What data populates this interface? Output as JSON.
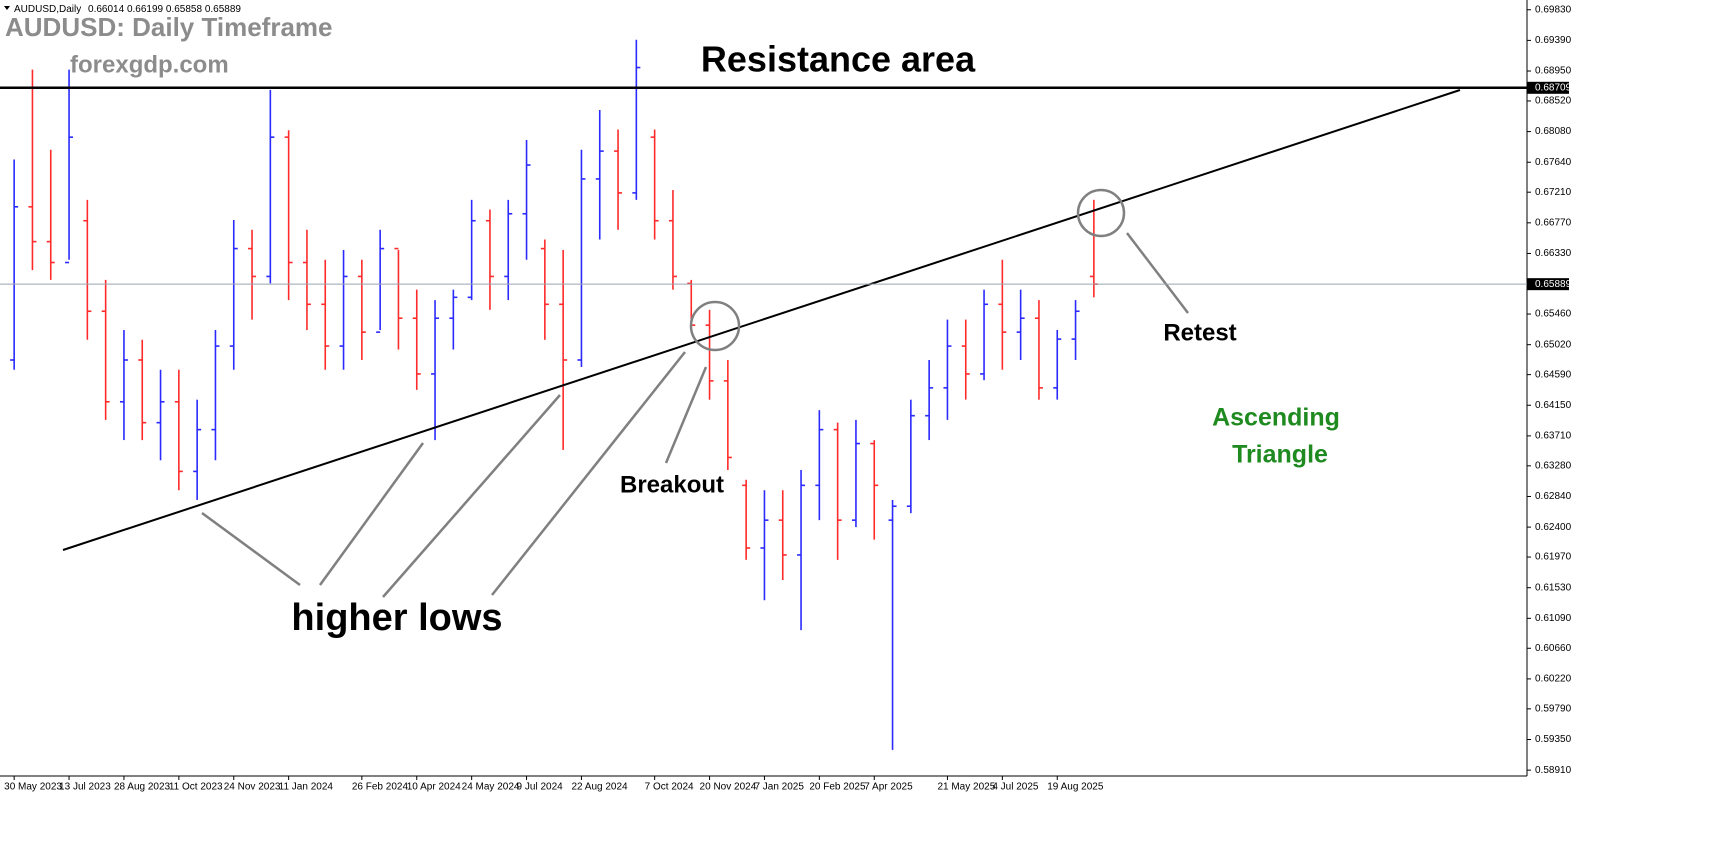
{
  "header": {
    "symbol": "AUDUSD,Daily",
    "ohlc": [
      0.66014,
      0.66199,
      0.65858,
      0.65889
    ]
  },
  "chart_data": {
    "type": "ohlc",
    "title": "AUDUSD: Daily Timeframe",
    "subtitle": "forexgdp.com",
    "categories": [
      "30 May 2023",
      null,
      null,
      "13 Jul 2023",
      null,
      null,
      "28 Aug 2023",
      null,
      null,
      "11 Oct 2023",
      null,
      null,
      "24 Nov 2023",
      null,
      null,
      "11 Jan 2024",
      null,
      null,
      null,
      "26 Feb 2024",
      null,
      null,
      "10 Apr 2024",
      null,
      null,
      "24 May 2024",
      null,
      null,
      "9 Jul 2024",
      null,
      null,
      "22 Aug 2024",
      null,
      null,
      null,
      "7 Oct 2024",
      null,
      null,
      "20 Nov 2024",
      null,
      null,
      "7 Jan 2025",
      null,
      null,
      "20 Feb 2025",
      null,
      null,
      "7 Apr 2025",
      null,
      null,
      null,
      "21 May 2025",
      null,
      null,
      "4 Jul 2025",
      null,
      null,
      "19 Aug 2025",
      null,
      null
    ],
    "open": [
      0.648,
      0.67,
      0.665,
      0.662,
      0.668,
      0.655,
      0.642,
      0.648,
      0.639,
      0.642,
      0.632,
      0.638,
      0.65,
      0.664,
      0.66,
      0.68,
      0.662,
      0.656,
      0.65,
      0.66,
      0.652,
      0.664,
      0.654,
      0.646,
      0.654,
      0.657,
      0.668,
      0.66,
      0.669,
      0.664,
      0.656,
      0.648,
      0.674,
      0.678,
      0.672,
      0.68,
      0.668,
      0.659,
      0.653,
      0.645,
      0.63,
      0.621,
      0.625,
      0.62,
      0.63,
      0.638,
      0.625,
      0.636,
      0.625,
      0.627,
      0.64,
      0.644,
      0.65,
      0.646,
      0.656,
      0.652,
      0.654,
      0.644,
      0.651,
      0.66
    ],
    "high": [
      0.6768,
      0.6897,
      0.6782,
      0.6897,
      0.671,
      0.6595,
      0.6523,
      0.6509,
      0.6466,
      0.6466,
      0.6423,
      0.6523,
      0.6681,
      0.6667,
      0.6868,
      0.681,
      0.6667,
      0.6624,
      0.6638,
      0.6624,
      0.6667,
      0.6638,
      0.6581,
      0.6566,
      0.6581,
      0.671,
      0.6696,
      0.671,
      0.6796,
      0.6653,
      0.6638,
      0.6782,
      0.6839,
      0.6811,
      0.694,
      0.6811,
      0.6724,
      0.6595,
      0.6552,
      0.648,
      0.6308,
      0.6293,
      0.6293,
      0.6322,
      0.6408,
      0.639,
      0.6394,
      0.6365,
      0.6279,
      0.6423,
      0.648,
      0.6538,
      0.6538,
      0.6581,
      0.6624,
      0.6581,
      0.6566,
      0.6523,
      0.6566,
      0.671
    ],
    "low": [
      0.6466,
      0.6609,
      0.6595,
      0.6624,
      0.6509,
      0.6394,
      0.6365,
      0.6365,
      0.6336,
      0.6293,
      0.6279,
      0.6336,
      0.6466,
      0.6538,
      0.659,
      0.6566,
      0.6523,
      0.6466,
      0.6466,
      0.648,
      0.6523,
      0.6495,
      0.6437,
      0.6365,
      0.6495,
      0.6566,
      0.6552,
      0.6566,
      0.6624,
      0.6509,
      0.6351,
      0.647,
      0.6653,
      0.6667,
      0.671,
      0.6653,
      0.6581,
      0.6523,
      0.6423,
      0.6322,
      0.6193,
      0.6135,
      0.6164,
      0.6092,
      0.625,
      0.6193,
      0.624,
      0.6222,
      0.592,
      0.626,
      0.6365,
      0.6394,
      0.6423,
      0.6451,
      0.6466,
      0.648,
      0.6423,
      0.6423,
      0.648,
      0.657
    ],
    "close": [
      0.67,
      0.665,
      0.662,
      0.68,
      0.655,
      0.642,
      0.648,
      0.639,
      0.642,
      0.632,
      0.638,
      0.65,
      0.664,
      0.66,
      0.68,
      0.662,
      0.656,
      0.65,
      0.66,
      0.652,
      0.664,
      0.654,
      0.646,
      0.654,
      0.657,
      0.668,
      0.66,
      0.669,
      0.676,
      0.656,
      0.648,
      0.674,
      0.678,
      0.672,
      0.69,
      0.668,
      0.66,
      0.653,
      0.645,
      0.634,
      0.621,
      0.625,
      0.62,
      0.63,
      0.638,
      0.625,
      0.636,
      0.63,
      0.627,
      0.64,
      0.644,
      0.65,
      0.646,
      0.656,
      0.652,
      0.654,
      0.644,
      0.651,
      0.655,
      0.65889
    ],
    "up_color": "#2a2aff",
    "down_color": "#ff2a2a",
    "ylim": [
      0.5884,
      0.6997
    ],
    "yticks": [
      {
        "value": 0.6983,
        "label": "0.69830"
      },
      {
        "value": 0.6939,
        "label": "0.69390"
      },
      {
        "value": 0.6895,
        "label": "0.68950"
      },
      {
        "value": 0.6852,
        "label": "0.68520"
      },
      {
        "value": 0.6808,
        "label": "0.68080"
      },
      {
        "value": 0.6764,
        "label": "0.67640"
      },
      {
        "value": 0.6721,
        "label": "0.67210"
      },
      {
        "value": 0.6677,
        "label": "0.66770"
      },
      {
        "value": 0.6633,
        "label": "0.66330"
      },
      {
        "value": 0.6546,
        "label": "0.65460"
      },
      {
        "value": 0.6502,
        "label": "0.65020"
      },
      {
        "value": 0.6459,
        "label": "0.64590"
      },
      {
        "value": 0.6415,
        "label": "0.64150"
      },
      {
        "value": 0.6371,
        "label": "0.63710"
      },
      {
        "value": 0.6328,
        "label": "0.63280"
      },
      {
        "value": 0.6284,
        "label": "0.62840"
      },
      {
        "value": 0.624,
        "label": "0.62400"
      },
      {
        "value": 0.6197,
        "label": "0.61970"
      },
      {
        "value": 0.6153,
        "label": "0.61530"
      },
      {
        "value": 0.6109,
        "label": "0.61090"
      },
      {
        "value": 0.6066,
        "label": "0.60660"
      },
      {
        "value": 0.6022,
        "label": "0.60220"
      },
      {
        "value": 0.5979,
        "label": "0.59790"
      },
      {
        "value": 0.5935,
        "label": "0.59350"
      },
      {
        "value": 0.5891,
        "label": "0.58910"
      }
    ],
    "resistance": 0.68709,
    "last_price": 0.65889,
    "annotations": {
      "resistance": "Resistance area",
      "higher_lows": "higher lows",
      "breakout": "Breakout",
      "retest": "Retest",
      "pattern": [
        "Ascending",
        "Triangle"
      ]
    }
  }
}
